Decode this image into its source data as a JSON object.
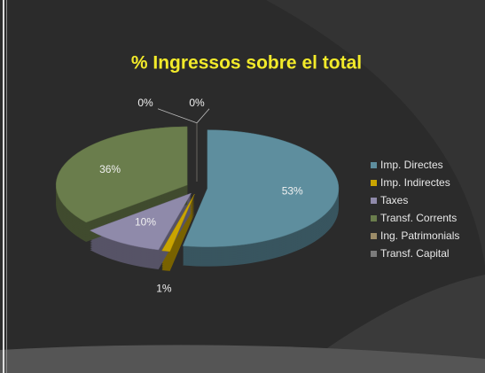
{
  "chart_data": {
    "type": "pie",
    "title": "% Ingressos sobre el total",
    "categories": [
      "Imp. Directes",
      "Imp. Indirectes",
      "Taxes",
      "Transf. Corrents",
      "Ing. Patrimonials",
      "Transf. Capital"
    ],
    "values": [
      53,
      1,
      10,
      36,
      0,
      0
    ],
    "value_labels": [
      "53%",
      "1%",
      "10%",
      "36%",
      "0%",
      "0%"
    ],
    "colors": [
      "#5e8e9e",
      "#c9a400",
      "#8f8aaa",
      "#6a7d4c",
      "#9c8c68",
      "#7c7c7c"
    ],
    "legend": "right"
  }
}
